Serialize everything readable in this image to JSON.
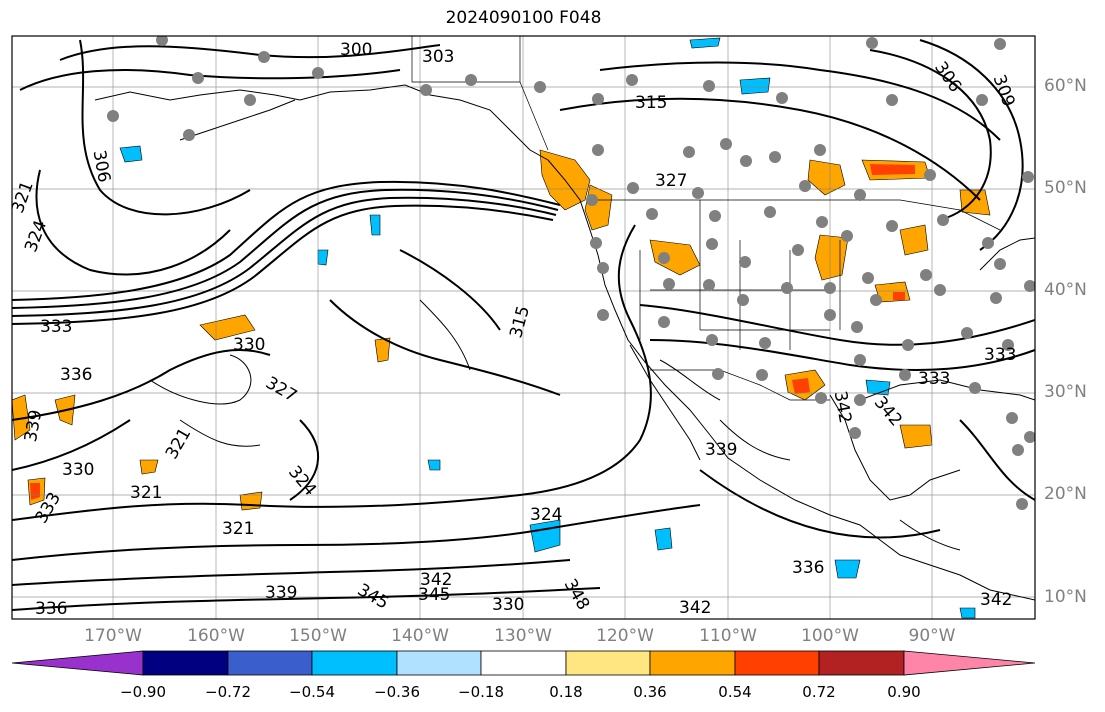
{
  "title": "2024090100 F048",
  "lat_labels": [
    "60°N",
    "50°N",
    "40°N",
    "30°N",
    "20°N",
    "10°N"
  ],
  "lon_labels": [
    "170°W",
    "160°W",
    "150°W",
    "140°W",
    "130°W",
    "120°W",
    "110°W",
    "100°W",
    "90°W"
  ],
  "colorbar": {
    "ticks": [
      "−0.90",
      "−0.72",
      "−0.54",
      "−0.36",
      "−0.18",
      "0.18",
      "0.36",
      "0.54",
      "0.72",
      "0.90"
    ],
    "colors": [
      "#9932cc",
      "#000080",
      "#3a5fcd",
      "#00bfff",
      "#b0e2ff",
      "#ffffff",
      "#ffe680",
      "#ffa500",
      "#ff4000",
      "#b22222",
      "#ff85a8"
    ]
  },
  "contour_labels": [
    "300",
    "303",
    "306",
    "309",
    "315",
    "321",
    "324",
    "327",
    "330",
    "333",
    "336",
    "339",
    "342",
    "345",
    "348"
  ],
  "colors": {
    "positive_fill": "#ffa500",
    "negative_fill": "#00bfff",
    "contour": "#000000",
    "station_dot": "#808080",
    "gridline": "#808080"
  }
}
